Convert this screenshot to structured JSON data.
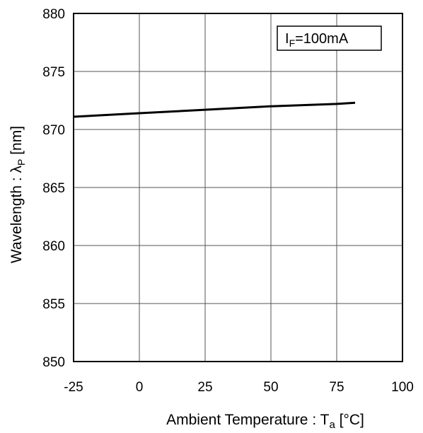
{
  "chart_data": {
    "type": "line",
    "xlabel": {
      "main": "Ambient Temperature : T",
      "sub": "a",
      "unit": " [°C]"
    },
    "ylabel": {
      "main": "Wavelength : λ",
      "sub": "P",
      "unit": " [nm]"
    },
    "xlim": [
      -25,
      100
    ],
    "ylim": [
      850,
      880
    ],
    "xticks": [
      -25,
      0,
      25,
      50,
      75,
      100
    ],
    "yticks": [
      850,
      855,
      860,
      865,
      870,
      875,
      880
    ],
    "grid": true,
    "annotation": {
      "main": "I",
      "sub": "F",
      "rest": "=100mA"
    },
    "series": [
      {
        "x": [
          -25,
          0,
          25,
          50,
          75,
          82
        ],
        "y": [
          871.1,
          871.4,
          871.7,
          872.0,
          872.2,
          872.3
        ]
      }
    ]
  }
}
